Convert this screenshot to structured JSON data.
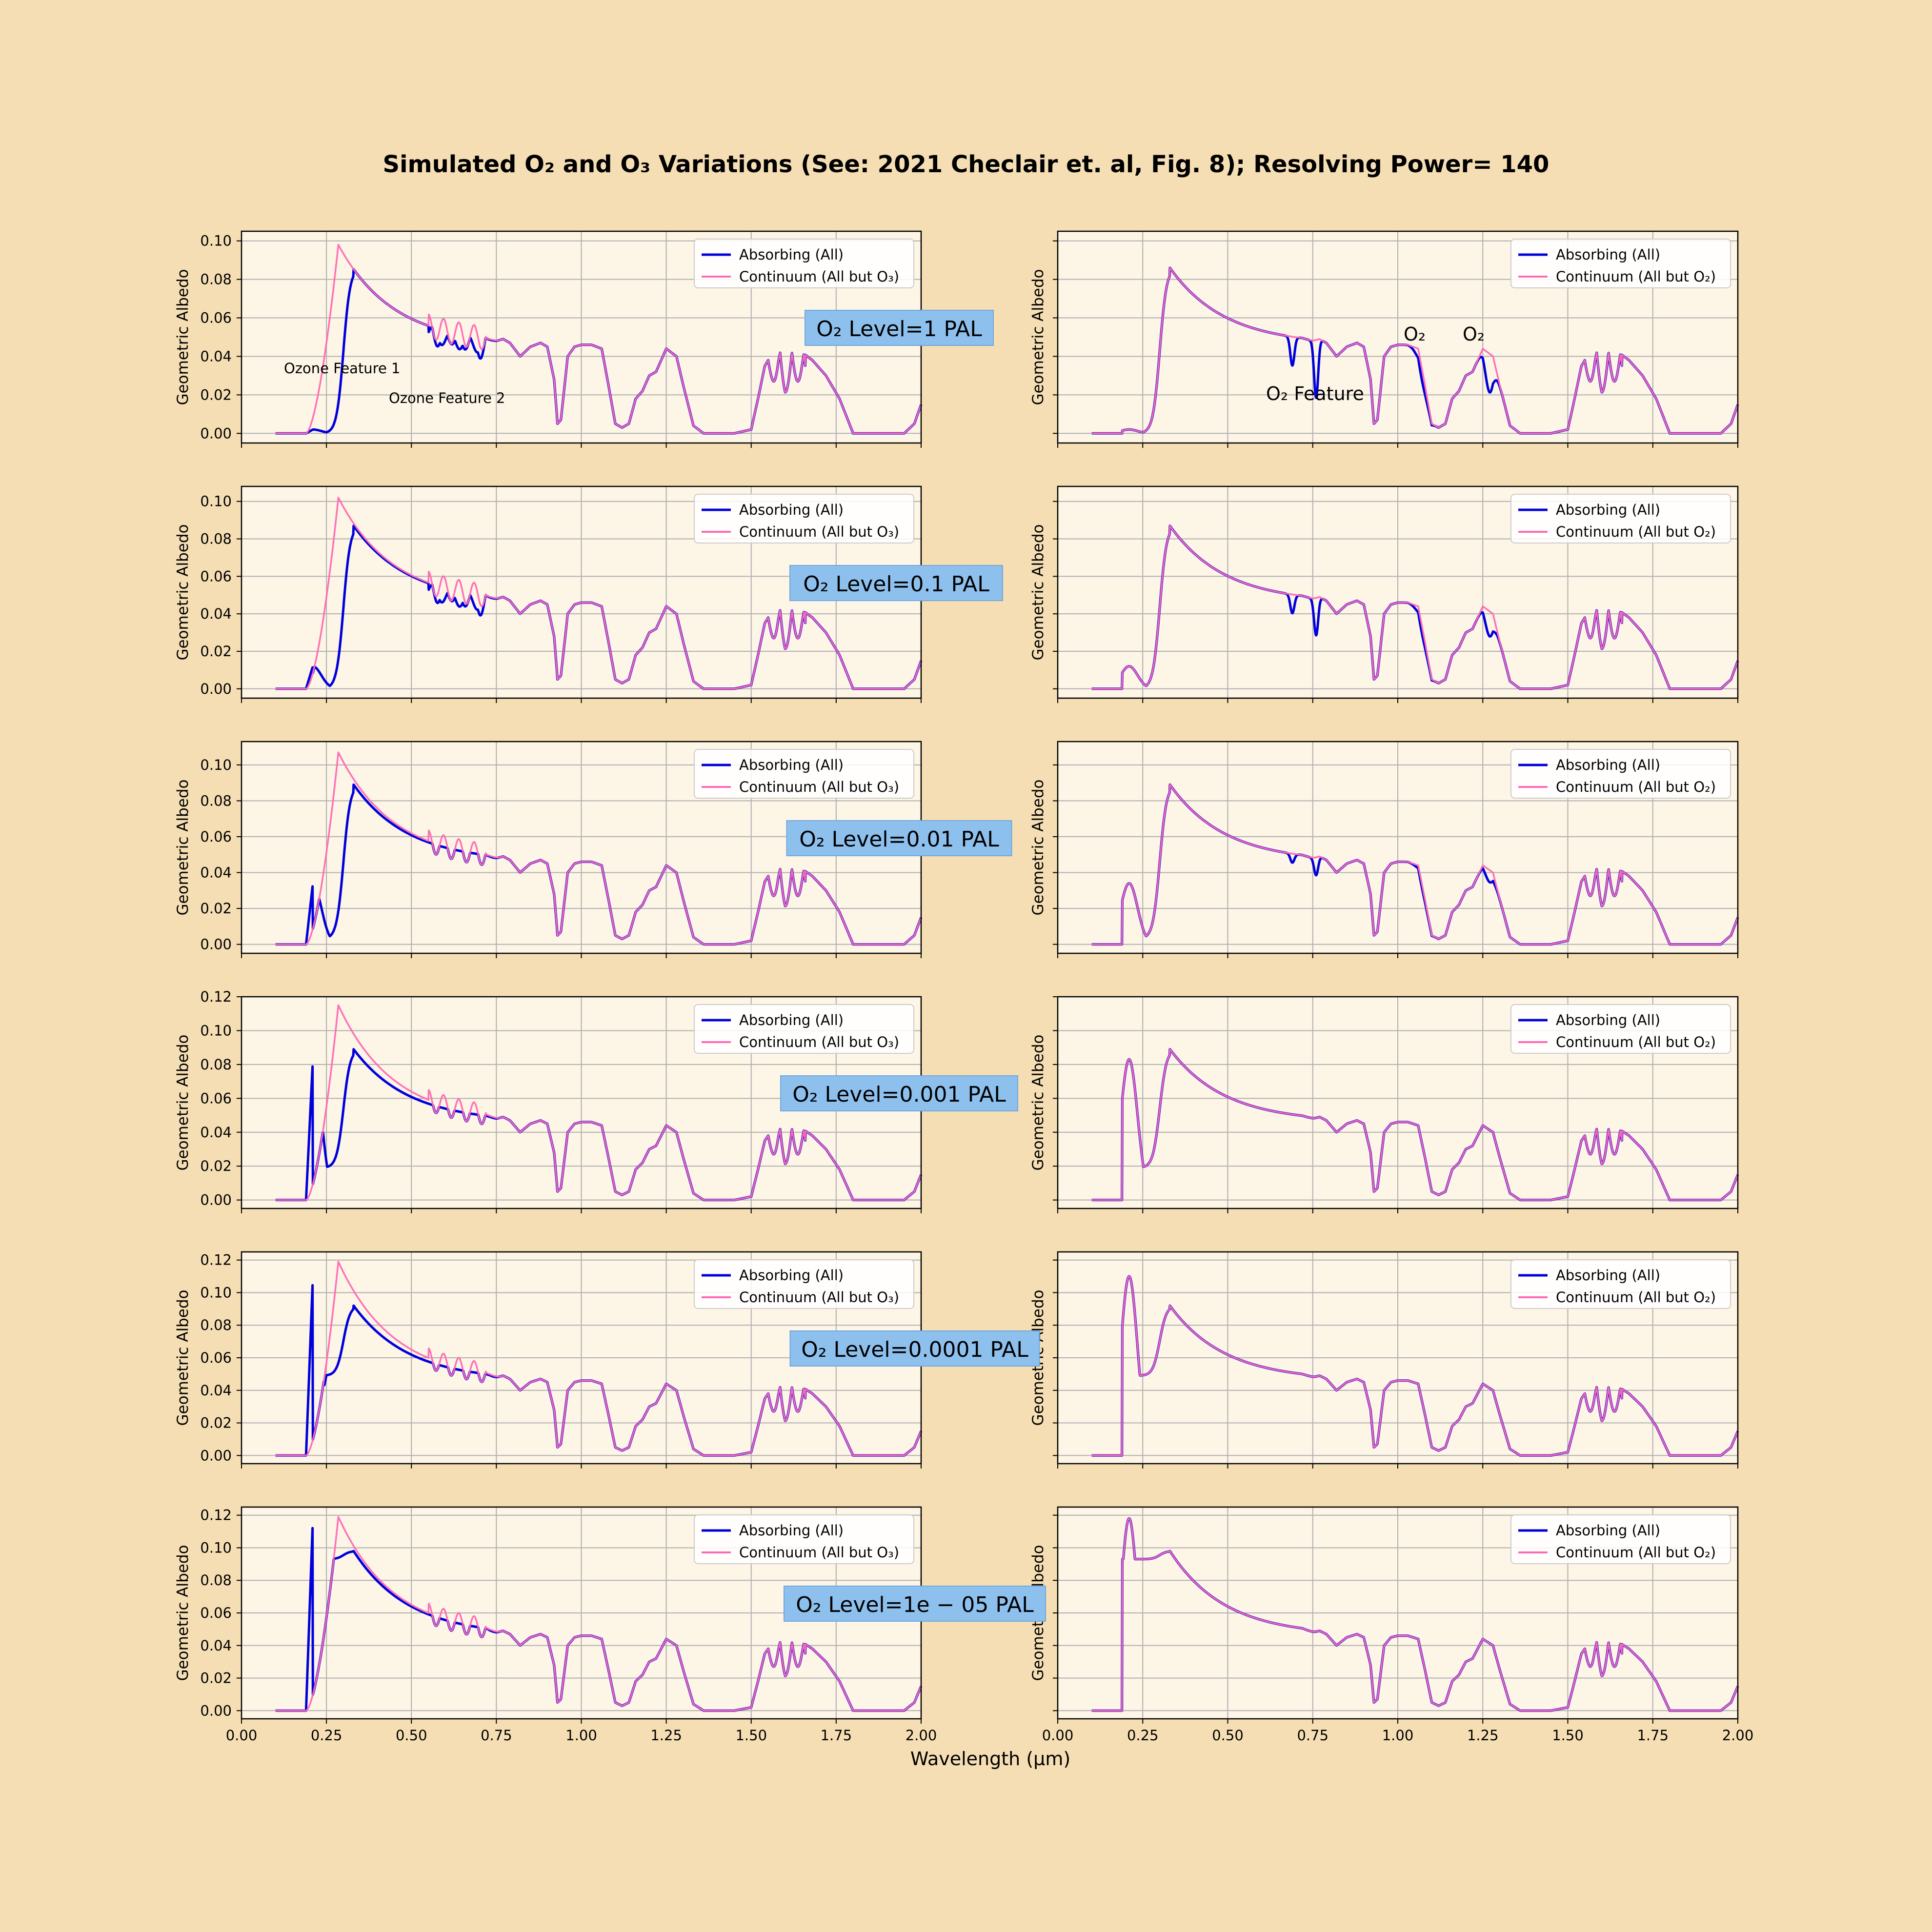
{
  "title": "Simulated O₂ and O₃ Variations (See: 2021 Checlair et. al, Fig. 8); Resolving Power= 140",
  "xlabel": "Wavelength (μm)",
  "ylabel": "Geometric Albedo",
  "colors": {
    "figure_bg": "#f5deb3",
    "axes_bg": "#fdf5e6",
    "absorbing": "#0000dd",
    "continuum": "#ff69b4",
    "level_box": "#8ec0ee",
    "grid": "#b0b0b0"
  },
  "legend": {
    "absorbing": "Absorbing (All)",
    "continuum_left": "Continuum (All but O₃)",
    "continuum_right": "Continuum (All but O₂)"
  },
  "level_labels": [
    "O₂ Level=1 PAL",
    "O₂ Level=0.1 PAL",
    "O₂ Level=0.01 PAL",
    "O₂ Level=0.001 PAL",
    "O₂ Level=0.0001 PAL",
    "O₂ Level=1e − 05 PAL"
  ],
  "annotations": {
    "ozone_feature_1": "Ozone Feature 1",
    "ozone_feature_2": "Ozone Feature 2",
    "o2_feature": "O₂ Feature",
    "o2_a": "O₂",
    "o2_b": "O₂"
  },
  "chart_data": {
    "type": "line",
    "xlim": [
      0.0,
      2.0
    ],
    "x_ticks": [
      "0.00",
      "0.25",
      "0.50",
      "0.75",
      "1.00",
      "1.25",
      "1.50",
      "1.75",
      "2.00"
    ],
    "grid": true,
    "legend_position": "upper right",
    "left_column_series": [
      "Absorbing (All)",
      "Continuum (All but O₃)"
    ],
    "right_column_series": [
      "Absorbing (All)",
      "Continuum (All but O₂)"
    ],
    "rows": [
      {
        "o2_level_pal": 1,
        "ylim": [
          -0.005,
          0.105
        ],
        "y_ticks": [
          "0.00",
          "0.02",
          "0.04",
          "0.06",
          "0.08",
          "0.10"
        ],
        "o3_uv_peak": 0.098,
        "uv_bump": 0.002,
        "uv_dip": 0.0,
        "visible_peak": 0.086
      },
      {
        "o2_level_pal": 0.1,
        "ylim": [
          -0.005,
          0.108
        ],
        "y_ticks": [
          "0.00",
          "0.02",
          "0.04",
          "0.06",
          "0.08",
          "0.10"
        ],
        "o3_uv_peak": 0.102,
        "uv_bump": 0.012,
        "uv_dip": 0.0,
        "visible_peak": 0.087
      },
      {
        "o2_level_pal": 0.01,
        "ylim": [
          -0.005,
          0.113
        ],
        "y_ticks": [
          "0.00",
          "0.02",
          "0.04",
          "0.06",
          "0.08",
          "0.10"
        ],
        "o3_uv_peak": 0.107,
        "uv_bump": 0.034,
        "uv_dip": 0.003,
        "visible_peak": 0.089
      },
      {
        "o2_level_pal": 0.001,
        "ylim": [
          -0.005,
          0.12
        ],
        "y_ticks": [
          "0.00",
          "0.02",
          "0.04",
          "0.06",
          "0.08",
          "0.10",
          "0.12"
        ],
        "o3_uv_peak": 0.115,
        "uv_bump": 0.083,
        "uv_dip": 0.019,
        "visible_peak": 0.089
      },
      {
        "o2_level_pal": 0.0001,
        "ylim": [
          -0.005,
          0.125
        ],
        "y_ticks": [
          "0.00",
          "0.02",
          "0.04",
          "0.06",
          "0.08",
          "0.10",
          "0.12"
        ],
        "o3_uv_peak": 0.119,
        "uv_bump": 0.11,
        "uv_dip": 0.049,
        "visible_peak": 0.092
      },
      {
        "o2_level_pal": 1e-05,
        "ylim": [
          -0.005,
          0.125
        ],
        "y_ticks": [
          "0.00",
          "0.02",
          "0.04",
          "0.06",
          "0.08",
          "0.10",
          "0.12"
        ],
        "o3_uv_peak": 0.119,
        "uv_bump": 0.118,
        "uv_dip": 0.093,
        "visible_peak": 0.098
      }
    ],
    "common_spectrum": {
      "x": [
        0.75,
        0.77,
        0.79,
        0.82,
        0.85,
        0.88,
        0.9,
        0.92,
        0.93,
        0.94,
        0.96,
        0.98,
        1.0,
        1.03,
        1.06,
        1.08,
        1.1,
        1.12,
        1.14,
        1.16,
        1.18,
        1.2,
        1.22,
        1.25,
        1.28,
        1.3,
        1.33,
        1.36,
        1.4,
        1.45,
        1.5,
        1.52,
        1.54,
        1.56,
        1.58,
        1.6,
        1.62,
        1.65,
        1.68,
        1.72,
        1.76,
        1.8,
        1.85,
        1.9,
        1.95,
        1.98,
        2.0
      ],
      "y": [
        0.048,
        0.049,
        0.047,
        0.04,
        0.045,
        0.047,
        0.045,
        0.028,
        0.005,
        0.007,
        0.04,
        0.045,
        0.046,
        0.046,
        0.044,
        0.025,
        0.005,
        0.003,
        0.005,
        0.018,
        0.022,
        0.03,
        0.032,
        0.044,
        0.04,
        0.025,
        0.004,
        0.0,
        0.0,
        0.0,
        0.002,
        0.018,
        0.035,
        0.041,
        0.044,
        0.036,
        0.042,
        0.042,
        0.038,
        0.03,
        0.018,
        0.0,
        0.0,
        0.0,
        0.0,
        0.005,
        0.015
      ]
    }
  }
}
